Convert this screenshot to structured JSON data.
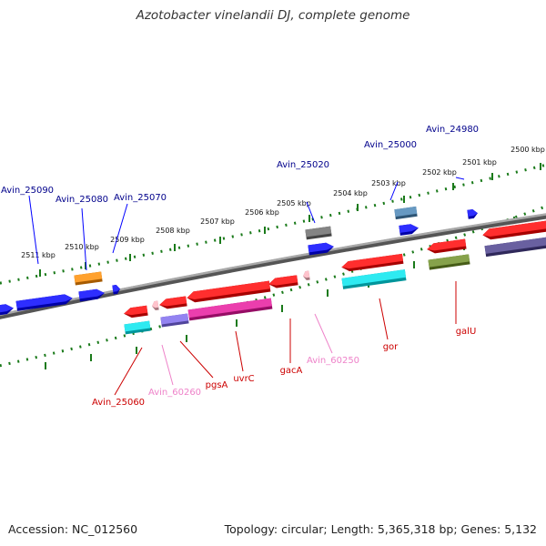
{
  "title": "Azotobacter vinelandii DJ, complete genome",
  "footer": {
    "accession": "Accession: NC_012560",
    "topology": "Topology: circular; Length: 5,365,318 bp; Genes: 5,132"
  },
  "colors": {
    "forward_blue": "#0000ff",
    "reverse_red": "#ff0000",
    "label_blue": "#00008b",
    "label_red": "#cc0000",
    "label_pink": "#ee82c9",
    "ruler_green": "#1a7a1a",
    "backbone": "#808080"
  },
  "scale_labels": [
    "2500 kbp",
    "2501 kbp",
    "2502 kbp",
    "2503 kbp",
    "2504 kbp",
    "2505 kbp",
    "2506 kbp",
    "2507 kbp",
    "2508 kbp",
    "2509 kbp",
    "2510 kbp",
    "2511 kbp"
  ],
  "gene_labels_top": [
    "Avin_24980",
    "Avin_25000",
    "Avin_25020",
    "Avin_25070",
    "Avin_25080",
    "Avin_25090"
  ],
  "gene_labels_bottom": [
    "galU",
    "gor",
    "Avin_60250",
    "gacA",
    "uvrC",
    "pgsA",
    "Avin_60260",
    "Avin_25060"
  ]
}
